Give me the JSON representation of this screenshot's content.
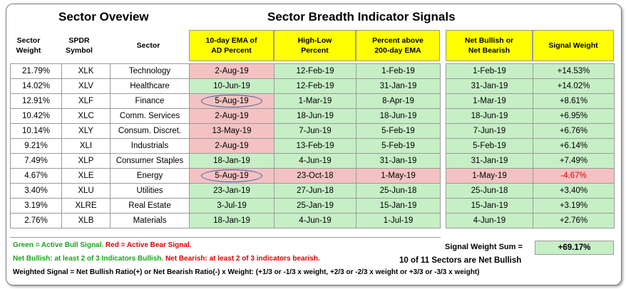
{
  "titles": {
    "left": "Sector Oveview",
    "right": "Sector Breadth Indicator Signals"
  },
  "headers": {
    "weight": "Sector\nWeight",
    "symbol": "SPDR\nSymbol",
    "sector": "Sector",
    "ema": "10-day EMA of\nAD Percent",
    "highlow": "High-Low\nPercent",
    "pct200": "Percent above\n200-day EMA",
    "net": "Net Bullish or\nNet Bearish",
    "signal": "Signal Weight"
  },
  "colors": {
    "green_cell": "#c6efc6",
    "red_cell": "#f4c2c2",
    "yellow_header": "#ffff00"
  },
  "rows": [
    {
      "weight": "21.79%",
      "symbol": "XLK",
      "sector": "Technology",
      "ema": "2-Aug-19",
      "ema_status": "red",
      "highlow": "12-Feb-19",
      "highlow_status": "green",
      "pct200": "1-Feb-19",
      "pct200_status": "green",
      "net": "1-Feb-19",
      "net_status": "green",
      "signal": "+14.53%",
      "signal_status": "green"
    },
    {
      "weight": "14.02%",
      "symbol": "XLV",
      "sector": "Healthcare",
      "ema": "10-Jun-19",
      "ema_status": "green",
      "highlow": "12-Feb-19",
      "highlow_status": "green",
      "pct200": "31-Jan-19",
      "pct200_status": "green",
      "net": "31-Jan-19",
      "net_status": "green",
      "signal": "+14.02%",
      "signal_status": "green"
    },
    {
      "weight": "12.91%",
      "symbol": "XLF",
      "sector": "Finance",
      "ema": "5-Aug-19",
      "ema_status": "red",
      "ema_circled": true,
      "highlow": "1-Mar-19",
      "highlow_status": "green",
      "pct200": "8-Apr-19",
      "pct200_status": "green",
      "net": "1-Mar-19",
      "net_status": "green",
      "signal": "+8.61%",
      "signal_status": "green"
    },
    {
      "weight": "10.42%",
      "symbol": "XLC",
      "sector": "Comm. Services",
      "ema": "2-Aug-19",
      "ema_status": "red",
      "highlow": "18-Jun-19",
      "highlow_status": "green",
      "pct200": "18-Jun-19",
      "pct200_status": "green",
      "net": "18-Jun-19",
      "net_status": "green",
      "signal": "+6.95%",
      "signal_status": "green"
    },
    {
      "weight": "10.14%",
      "symbol": "XLY",
      "sector": "Consum. Discret.",
      "ema": "13-May-19",
      "ema_status": "red",
      "highlow": "7-Jun-19",
      "highlow_status": "green",
      "pct200": "5-Feb-19",
      "pct200_status": "green",
      "net": "7-Jun-19",
      "net_status": "green",
      "signal": "+6.76%",
      "signal_status": "green"
    },
    {
      "weight": "9.21%",
      "symbol": "XLI",
      "sector": "Industrials",
      "ema": "2-Aug-19",
      "ema_status": "red",
      "highlow": "13-Feb-19",
      "highlow_status": "green",
      "pct200": "5-Feb-19",
      "pct200_status": "green",
      "net": "5-Feb-19",
      "net_status": "green",
      "signal": "+6.14%",
      "signal_status": "green"
    },
    {
      "weight": "7.49%",
      "symbol": "XLP",
      "sector": "Consumer Staples",
      "ema": "18-Jan-19",
      "ema_status": "green",
      "highlow": "4-Jun-19",
      "highlow_status": "green",
      "pct200": "31-Jan-19",
      "pct200_status": "green",
      "net": "31-Jan-19",
      "net_status": "green",
      "signal": "+7.49%",
      "signal_status": "green"
    },
    {
      "weight": "4.67%",
      "symbol": "XLE",
      "sector": "Energy",
      "ema": "5-Aug-19",
      "ema_status": "red",
      "ema_circled": true,
      "highlow": "23-Oct-18",
      "highlow_status": "red",
      "pct200": "1-May-19",
      "pct200_status": "red",
      "net": "1-May-19",
      "net_status": "red",
      "signal": "-4.67%",
      "signal_status": "red"
    },
    {
      "weight": "3.40%",
      "symbol": "XLU",
      "sector": "Utilities",
      "ema": "23-Jan-19",
      "ema_status": "green",
      "highlow": "27-Jun-18",
      "highlow_status": "green",
      "pct200": "25-Jun-18",
      "pct200_status": "green",
      "net": "25-Jun-18",
      "net_status": "green",
      "signal": "+3.40%",
      "signal_status": "green"
    },
    {
      "weight": "3.19%",
      "symbol": "XLRE",
      "sector": "Real Estate",
      "ema": "3-Jul-19",
      "ema_status": "green",
      "highlow": "25-Jan-19",
      "highlow_status": "green",
      "pct200": "15-Jan-19",
      "pct200_status": "green",
      "net": "15-Jan-19",
      "net_status": "green",
      "signal": "+3.19%",
      "signal_status": "green"
    },
    {
      "weight": "2.76%",
      "symbol": "XLB",
      "sector": "Materials",
      "ema": "18-Jan-19",
      "ema_status": "green",
      "highlow": "4-Jun-19",
      "highlow_status": "green",
      "pct200": "1-Jul-19",
      "pct200_status": "green",
      "net": "4-Jun-19",
      "net_status": "green",
      "signal": "+2.76%",
      "signal_status": "green"
    }
  ],
  "legend": {
    "green_text": "Green = Active Bull Signal.",
    "red_text": "Red = Active Bear Signal.",
    "net_bullish": "Net Bullish: at least 2 of 3 Indicators Bullish.",
    "net_bearish": "Net Bearish: at least 2 of 3 indicators bearish.",
    "weighted": "Weighted Signal = Net Bullish Ratio(+) or Net Bearish Ratio(-) x Weight: (+1/3 or -1/3 x weight, +2/3 or -2/3 x weight or +3/3 or -3/3 x weight)"
  },
  "summary": {
    "sum_label": "Signal Weight Sum =",
    "sum_value": "+69.17%",
    "sectors_text": "10 of 11 Sectors are Net Bullish"
  }
}
